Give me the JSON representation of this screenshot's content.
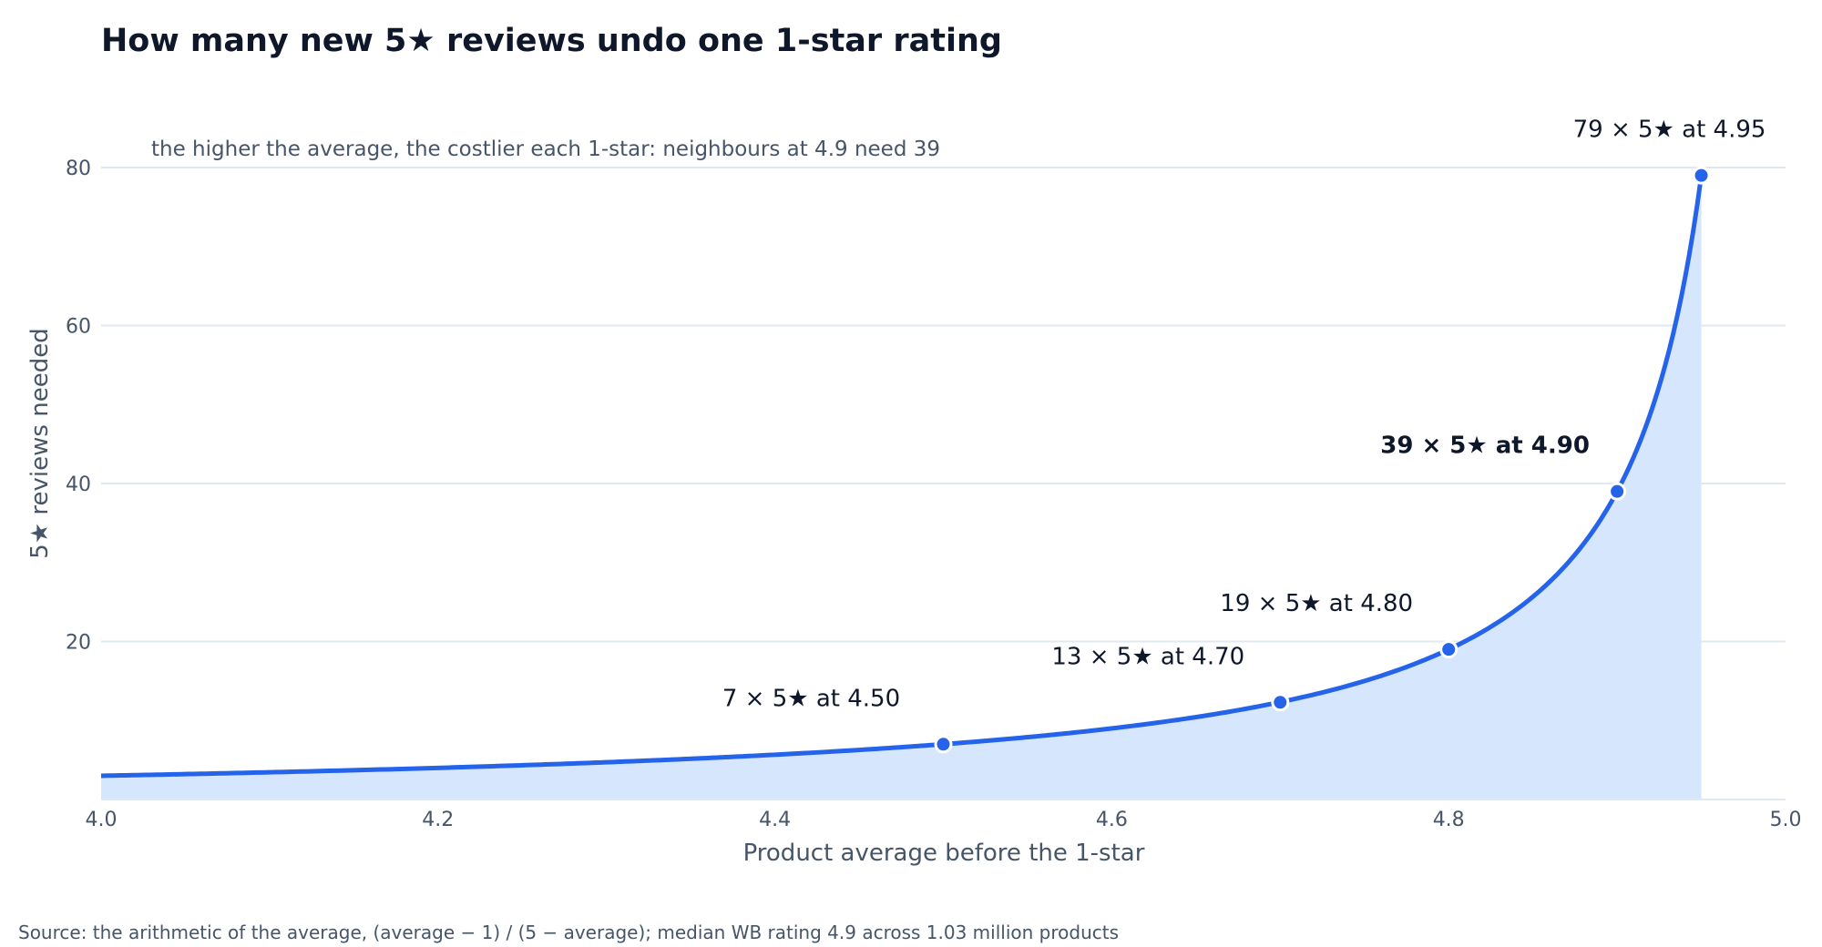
{
  "chart_data": {
    "type": "area",
    "title": "How many new 5★ reviews undo one 1-star rating",
    "subtitle": "the higher the average, the costlier each 1-star: neighbours at 4.9 need 39",
    "xlabel": "Product average before the 1-star",
    "ylabel": "5★ reviews needed",
    "source": "Source: the arithmetic of the average, (average − 1) / (5 − average); median WB rating 4.9 across 1.03 million products",
    "xlim": [
      4.0,
      5.0
    ],
    "ylim": [
      0,
      80
    ],
    "x_ticks": [
      "4.0",
      "4.2",
      "4.4",
      "4.6",
      "4.8",
      "5.0"
    ],
    "y_ticks": [
      "20",
      "40",
      "60",
      "80"
    ],
    "grid": "horizontal",
    "curve": {
      "formula": "(average − 1) / (5 − average)",
      "x_start": 4.0,
      "x_end": 4.95
    },
    "highlight_points": [
      {
        "x": 4.5,
        "y": 7,
        "label": "7 × 5★ at 4.50",
        "bold": false
      },
      {
        "x": 4.7,
        "y": 12.3,
        "label": "13 × 5★ at 4.70",
        "bold": false
      },
      {
        "x": 4.8,
        "y": 19,
        "label": "19 × 5★ at 4.80",
        "bold": false
      },
      {
        "x": 4.9,
        "y": 39,
        "label": "39 × 5★ at 4.90",
        "bold": true
      },
      {
        "x": 4.95,
        "y": 79,
        "label": "79 × 5★ at 4.95",
        "bold": false
      }
    ],
    "colors": {
      "line": "#2563eb",
      "fill": "#d6e6fc",
      "grid": "#e2e8f0",
      "text": "#0f172a",
      "muted": "#475569"
    }
  }
}
